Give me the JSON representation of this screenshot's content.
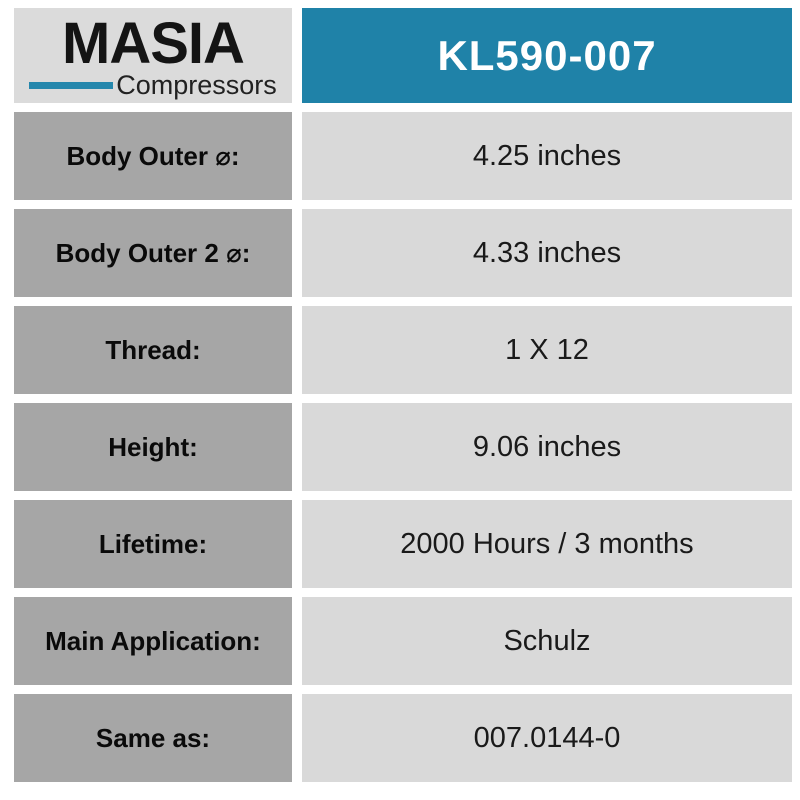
{
  "brand": {
    "name": "MASIA",
    "tagline": "Compressors"
  },
  "header": {
    "part_number": "KL590-007"
  },
  "colors": {
    "accent_teal": "#1f82a8",
    "brand_bar_teal": "#2587ac",
    "label_cell_bg": "#a6a6a6",
    "value_cell_bg": "#d9d9d9",
    "logo_cell_bg": "#dbdbdb",
    "text_black": "#0a0a0a"
  },
  "specs": [
    {
      "label": "Body Outer ⌀:",
      "value": "4.25 inches"
    },
    {
      "label": "Body Outer 2 ⌀:",
      "value": "4.33 inches"
    },
    {
      "label": "Thread:",
      "value": "1 X 12"
    },
    {
      "label": "Height:",
      "value": "9.06 inches"
    },
    {
      "label": "Lifetime:",
      "value": "2000 Hours / 3 months"
    },
    {
      "label": "Main Application:",
      "value": "Schulz"
    },
    {
      "label": "Same as:",
      "value": "007.0144-0"
    }
  ]
}
